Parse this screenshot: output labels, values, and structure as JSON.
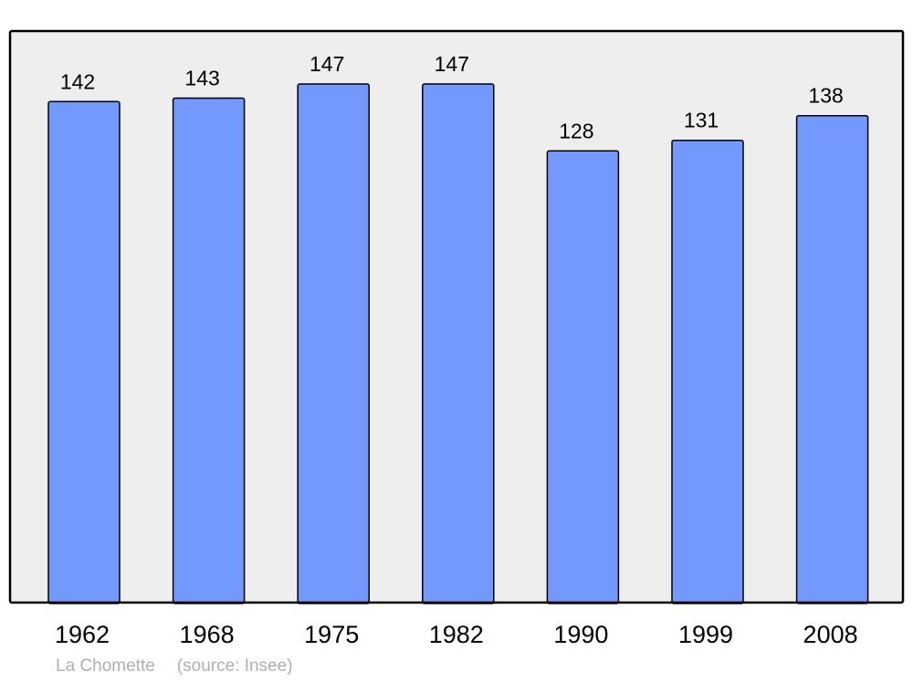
{
  "chart_data": {
    "type": "bar",
    "categories": [
      "1962",
      "1968",
      "1975",
      "1982",
      "1990",
      "1999",
      "2008"
    ],
    "values": [
      142,
      143,
      147,
      147,
      128,
      131,
      138
    ],
    "title": "",
    "xlabel": "",
    "ylabel": "",
    "ylim": [
      0,
      162
    ],
    "grid": false,
    "data_labels": true,
    "colors": {
      "bar": "#7399ff",
      "plot_background": "#eeeeee",
      "border": "#000000"
    }
  },
  "caption": {
    "place": "La Chomette",
    "source": "(source: Insee)"
  }
}
